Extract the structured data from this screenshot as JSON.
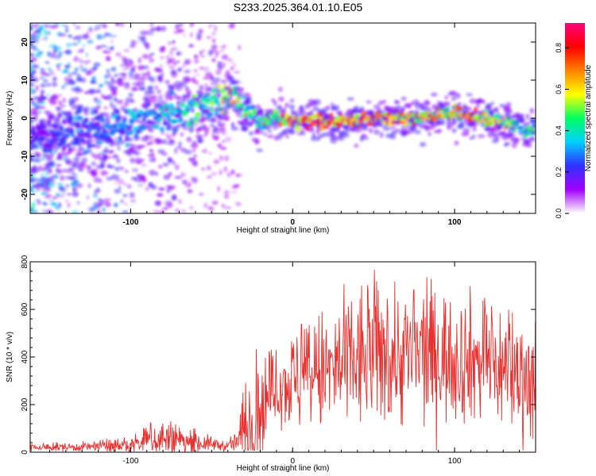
{
  "title": "S233.2025.364.01.10.E05",
  "colors": {
    "snr_line": "#e8312f",
    "spectrogram_colormap": [
      "#ffffff",
      "#a000ff",
      "#3030ff",
      "#00d0ff",
      "#00ff60",
      "#ffff00",
      "#ff8000",
      "#ff0000",
      "#ff0080"
    ]
  },
  "chart_data": [
    {
      "type": "heatmap",
      "title": "S233.2025.364.01.10.E05",
      "xlabel": "Height of straight line (km)",
      "ylabel": "Frequency (Hz)",
      "xlim": [
        -162,
        150
      ],
      "ylim": [
        -25,
        25
      ],
      "x_ticks": [
        -100,
        0,
        100
      ],
      "y_ticks": [
        -20,
        -10,
        0,
        10,
        20
      ],
      "colorbar": {
        "label": "Normalized spectral amplitude",
        "range": [
          0.0,
          0.92
        ],
        "ticks": [
          "0.0",
          "0.2",
          "0.4",
          "0.6",
          "0.8"
        ]
      },
      "ridge": {
        "x": [
          -162,
          -140,
          -120,
          -100,
          -85,
          -70,
          -55,
          -48,
          -40,
          -35,
          -30,
          -25,
          -20,
          -15,
          -10,
          0,
          20,
          40,
          60,
          80,
          100,
          120,
          135,
          140,
          145,
          150
        ],
        "frequency": [
          -5,
          -4,
          -3,
          -1.5,
          0,
          1.5,
          3,
          4.5,
          5.5,
          5.2,
          3,
          1.5,
          -1.5,
          -0.5,
          0.5,
          -0.5,
          -0.8,
          -0.5,
          0,
          0.2,
          1.2,
          0,
          -1.5,
          -2.5,
          -3.5,
          -2
        ],
        "amplitude": [
          0.2,
          0.25,
          0.3,
          0.35,
          0.38,
          0.42,
          0.5,
          0.55,
          0.65,
          0.6,
          0.5,
          0.52,
          0.45,
          0.55,
          0.65,
          0.78,
          0.82,
          0.8,
          0.85,
          0.8,
          0.78,
          0.72,
          0.62,
          0.5,
          0.45,
          0.45
        ]
      }
    },
    {
      "type": "line",
      "xlabel": "Height of straight line (km)",
      "ylabel": "SNR (10 * v/v)",
      "xlim": [
        -162,
        150
      ],
      "ylim": [
        0,
        800
      ],
      "x_ticks": [
        -100,
        0,
        100
      ],
      "y_ticks": [
        0,
        200,
        400,
        600,
        800
      ],
      "envelope": {
        "x": [
          -162,
          -130,
          -100,
          -90,
          -80,
          -70,
          -60,
          -50,
          -40,
          -35,
          -30,
          -25,
          -20,
          -15,
          -10,
          0,
          20,
          40,
          50,
          60,
          80,
          100,
          120,
          140,
          150
        ],
        "mean": [
          20,
          22,
          28,
          50,
          60,
          45,
          40,
          35,
          25,
          40,
          80,
          140,
          190,
          240,
          270,
          300,
          330,
          380,
          420,
          400,
          410,
          400,
          380,
          330,
          300
        ],
        "max": [
          40,
          45,
          70,
          120,
          170,
          120,
          100,
          70,
          50,
          100,
          300,
          480,
          500,
          450,
          430,
          560,
          650,
          760,
          800,
          750,
          770,
          720,
          700,
          650,
          600
        ]
      }
    }
  ]
}
